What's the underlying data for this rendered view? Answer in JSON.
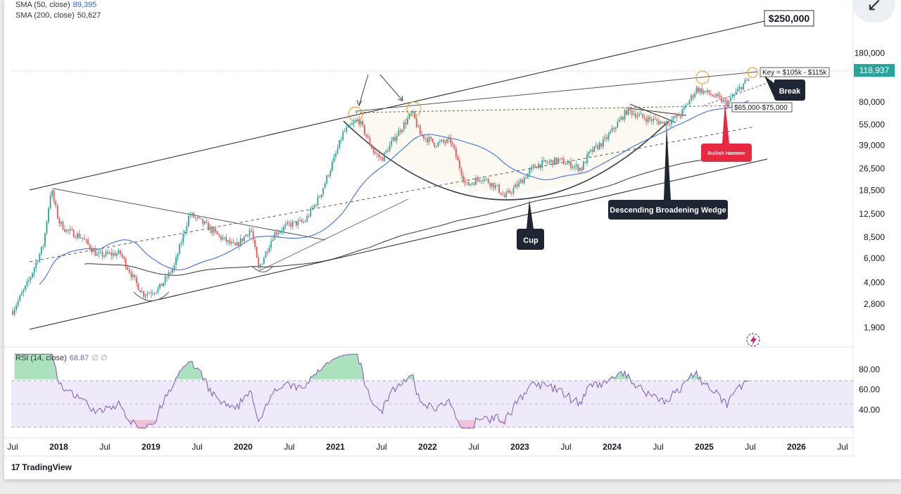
{
  "legend": {
    "sma50_label": "SMA (50, close)",
    "sma50_value": "89,395",
    "sma200_label": "SMA (200, close)",
    "sma200_value": "50,627",
    "rsi_label": "RSI (14, close)",
    "rsi_value": "68.87",
    "rsi_extra": "∅ ∅"
  },
  "brand": "TradingView",
  "colors": {
    "sma50": "#2962ff",
    "sma200": "#333333",
    "rsi": "#7e57c2",
    "price_tag": "#26a69a",
    "red_label": "#e8283f",
    "dark_label": "#1e2633"
  },
  "chart_data": {
    "type": "candlestick",
    "scale": "log",
    "y_ticks": [
      "180,000",
      "80,000",
      "55,000",
      "39,000",
      "26,500",
      "18,500",
      "12,500",
      "8,500",
      "6,000",
      "4,000",
      "2,800",
      "1,900"
    ],
    "current_price": "118,937",
    "x_ticks": [
      "Jul",
      "2018",
      "Jul",
      "2019",
      "Jul",
      "2020",
      "Jul",
      "2021",
      "Jul",
      "2022",
      "Jul",
      "2023",
      "Jul",
      "2024",
      "Jul",
      "2025",
      "Jul",
      "2026",
      "Jul"
    ],
    "x_range": [
      "2017-07",
      "2026-07"
    ],
    "price_path": [
      [
        "2017-07",
        2500
      ],
      [
        "2017-09",
        4000
      ],
      [
        "2017-11",
        7500
      ],
      [
        "2017-12",
        19000
      ],
      [
        "2018-01",
        11000
      ],
      [
        "2018-02",
        9500
      ],
      [
        "2018-04",
        8500
      ],
      [
        "2018-06",
        6300
      ],
      [
        "2018-09",
        6500
      ],
      [
        "2018-11",
        4000
      ],
      [
        "2018-12",
        3300
      ],
      [
        "2019-02",
        3600
      ],
      [
        "2019-04",
        5200
      ],
      [
        "2019-06",
        12500
      ],
      [
        "2019-08",
        10500
      ],
      [
        "2019-10",
        8500
      ],
      [
        "2019-12",
        7200
      ],
      [
        "2020-02",
        9800
      ],
      [
        "2020-03",
        5000
      ],
      [
        "2020-05",
        9000
      ],
      [
        "2020-07",
        10500
      ],
      [
        "2020-09",
        11000
      ],
      [
        "2020-11",
        17000
      ],
      [
        "2021-01",
        33000
      ],
      [
        "2021-02",
        48000
      ],
      [
        "2021-04",
        60000
      ],
      [
        "2021-06",
        35000
      ],
      [
        "2021-07",
        31000
      ],
      [
        "2021-09",
        47000
      ],
      [
        "2021-11",
        67000
      ],
      [
        "2021-12",
        47000
      ],
      [
        "2022-02",
        40000
      ],
      [
        "2022-04",
        42000
      ],
      [
        "2022-06",
        20000
      ],
      [
        "2022-08",
        23000
      ],
      [
        "2022-10",
        19500
      ],
      [
        "2022-11",
        16500
      ],
      [
        "2023-01",
        21000
      ],
      [
        "2023-03",
        28000
      ],
      [
        "2023-06",
        30500
      ],
      [
        "2023-09",
        26500
      ],
      [
        "2023-10",
        34000
      ],
      [
        "2023-12",
        42000
      ],
      [
        "2024-03",
        70000
      ],
      [
        "2024-05",
        62000
      ],
      [
        "2024-08",
        56000
      ],
      [
        "2024-10",
        66000
      ],
      [
        "2024-12",
        100000
      ],
      [
        "2025-02",
        90000
      ],
      [
        "2025-04",
        78000
      ],
      [
        "2025-06",
        107000
      ],
      [
        "2025-07",
        118937
      ]
    ],
    "sma50": "89,395",
    "sma200": "50,627",
    "rsi": {
      "label": "RSI (14, close)",
      "value": 68.87,
      "ticks": [
        "80.00",
        "60.00",
        "40.00"
      ],
      "band": [
        30,
        70
      ]
    },
    "annotations": {
      "target": "$250,000",
      "key": "Key = $105k - $115k",
      "break": "Break",
      "zone": "$65,000-$75,000",
      "hammer": "Bullish Hammer",
      "cup": "Cup",
      "wedge": "Descending Broadening Wedge"
    }
  }
}
